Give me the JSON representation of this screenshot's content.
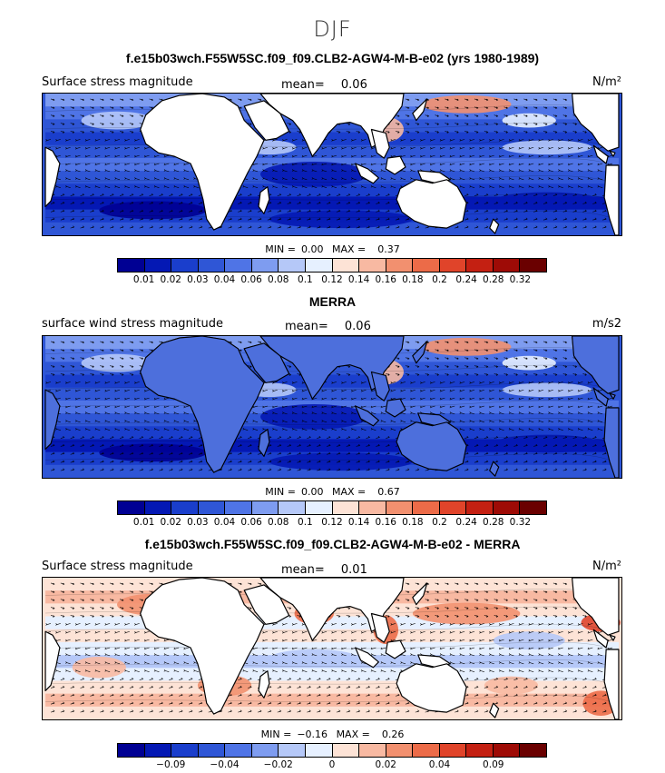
{
  "page": {
    "title": "DJF"
  },
  "colors": {
    "full": [
      "#000093",
      "#0418b4",
      "#1a3ecc",
      "#2f56d6",
      "#4f74e6",
      "#7e9cf0",
      "#b5c8f8",
      "#e6f0ff",
      "#fde3d6",
      "#f8b9a2",
      "#f2906f",
      "#ec6b48",
      "#e0442a",
      "#c42012",
      "#9e0b06",
      "#6a0000"
    ],
    "diff": [
      "#000093",
      "#0418b4",
      "#1a3ecc",
      "#2f56d6",
      "#4f74e6",
      "#7e9cf0",
      "#b5c8f8",
      "#e6f0ff",
      "#fde3d6",
      "#f8b9a2",
      "#f2906f",
      "#ec6b48",
      "#e0442a",
      "#c42012",
      "#9e0b06",
      "#6a0000"
    ]
  },
  "panels": [
    {
      "title": "f.e15b03wch.F55W5SC.f09_f09.CLB2-AGW4-M-B-e02 (yrs 1980-1989)",
      "variable": "Surface stress magnitude",
      "mean_label": "mean=",
      "mean_value": "0.06",
      "units": "N/m²",
      "min_label": "MIN =",
      "min_value": "0.00",
      "max_label": "MAX =",
      "max_value": "0.37",
      "colorbar_ticks": [
        "0.01",
        "0.02",
        "0.03",
        "0.04",
        "0.06",
        "0.08",
        "0.1",
        "0.12",
        "0.14",
        "0.16",
        "0.18",
        "0.2",
        "0.24",
        "0.28",
        "0.32"
      ],
      "style": "full"
    },
    {
      "title": "MERRA",
      "variable": "surface wind stress magnitude",
      "mean_label": "mean=",
      "mean_value": "0.06",
      "units": "m/s2",
      "min_label": "MIN =",
      "min_value": "0.00",
      "max_label": "MAX =",
      "max_value": "0.67",
      "colorbar_ticks": [
        "0.01",
        "0.02",
        "0.03",
        "0.04",
        "0.06",
        "0.08",
        "0.1",
        "0.12",
        "0.14",
        "0.16",
        "0.18",
        "0.2",
        "0.24",
        "0.28",
        "0.32"
      ],
      "style": "full"
    },
    {
      "title": "f.e15b03wch.F55W5SC.f09_f09.CLB2-AGW4-M-B-e02 - MERRA",
      "variable": "Surface stress magnitude",
      "mean_label": "mean=",
      "mean_value": "0.01",
      "units": "N/m²",
      "min_label": "MIN =",
      "min_value": "−0.16",
      "max_label": "MAX =",
      "max_value": "0.26",
      "colorbar_ticks": [
        "",
        "−0.09",
        "",
        "−0.04",
        "",
        "−0.02",
        "",
        "0",
        "",
        "0.02",
        "",
        "0.04",
        "",
        "0.09",
        ""
      ],
      "style": "diff"
    }
  ]
}
